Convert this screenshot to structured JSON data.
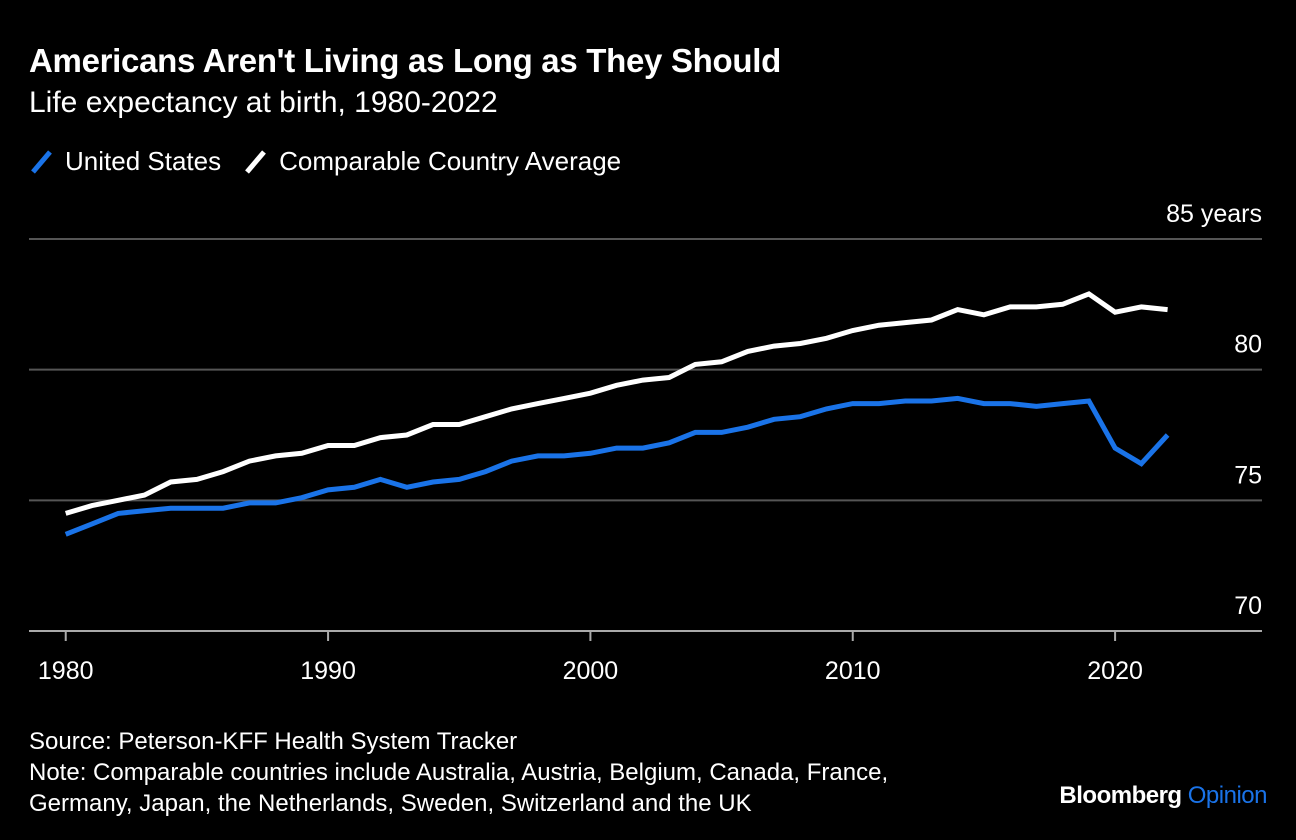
{
  "title": "Americans Aren't Living as Long as They Should",
  "subtitle": "Life expectancy at birth, 1980-2022",
  "source": "Source: Peterson-KFF Health System Tracker",
  "note_line1": "Note: Comparable countries include Australia, Austria, Belgium, Canada, France,",
  "note_line2": "Germany, Japan, the Netherlands, Sweden, Switzerland and the UK",
  "brand": {
    "name": "Bloomberg",
    "sub": "Opinion",
    "sub_color": "#1A73E8"
  },
  "colors": {
    "background": "#000000",
    "grid": "#555555",
    "axis": "#aaaaaa"
  },
  "chart_data": {
    "type": "line",
    "title": "Americans Aren't Living as Long as They Should",
    "subtitle": "Life expectancy at birth, 1980-2022",
    "xlabel": "",
    "ylabel": "",
    "xlim": [
      1978.6,
      2025.6
    ],
    "ylim": [
      70,
      85
    ],
    "x_ticks": [
      {
        "value": 1980,
        "label": "1980"
      },
      {
        "value": 1990,
        "label": "1990"
      },
      {
        "value": 2000,
        "label": "2000"
      },
      {
        "value": 2010,
        "label": "2010"
      },
      {
        "value": 2020,
        "label": "2020"
      }
    ],
    "y_ticks": [
      {
        "value": 85,
        "label": "85 years"
      },
      {
        "value": 80,
        "label": "80"
      },
      {
        "value": 75,
        "label": "75"
      },
      {
        "value": 70,
        "label": "70"
      }
    ],
    "grid": true,
    "legend_position": "top-left",
    "x": [
      1980,
      1981,
      1982,
      1983,
      1984,
      1985,
      1986,
      1987,
      1988,
      1989,
      1990,
      1991,
      1992,
      1993,
      1994,
      1995,
      1996,
      1997,
      1998,
      1999,
      2000,
      2001,
      2002,
      2003,
      2004,
      2005,
      2006,
      2007,
      2008,
      2009,
      2010,
      2011,
      2012,
      2013,
      2014,
      2015,
      2016,
      2017,
      2018,
      2019,
      2020,
      2021,
      2022
    ],
    "series": [
      {
        "name": "United States",
        "color": "#1A73E8",
        "values": [
          73.7,
          74.1,
          74.5,
          74.6,
          74.7,
          74.7,
          74.7,
          74.9,
          74.9,
          75.1,
          75.4,
          75.5,
          75.8,
          75.5,
          75.7,
          75.8,
          76.1,
          76.5,
          76.7,
          76.7,
          76.8,
          77.0,
          77.0,
          77.2,
          77.6,
          77.6,
          77.8,
          78.1,
          78.2,
          78.5,
          78.7,
          78.7,
          78.8,
          78.8,
          78.9,
          78.7,
          78.7,
          78.6,
          78.7,
          78.8,
          77.0,
          76.4,
          77.5
        ]
      },
      {
        "name": "Comparable Country Average",
        "color": "#ffffff",
        "values": [
          74.5,
          74.8,
          75.0,
          75.2,
          75.7,
          75.8,
          76.1,
          76.5,
          76.7,
          76.8,
          77.1,
          77.1,
          77.4,
          77.5,
          77.9,
          77.9,
          78.2,
          78.5,
          78.7,
          78.9,
          79.1,
          79.4,
          79.6,
          79.7,
          80.2,
          80.3,
          80.7,
          80.9,
          81.0,
          81.2,
          81.5,
          81.7,
          81.8,
          81.9,
          82.3,
          82.1,
          82.4,
          82.4,
          82.5,
          82.9,
          82.2,
          82.4,
          82.3
        ]
      }
    ]
  }
}
